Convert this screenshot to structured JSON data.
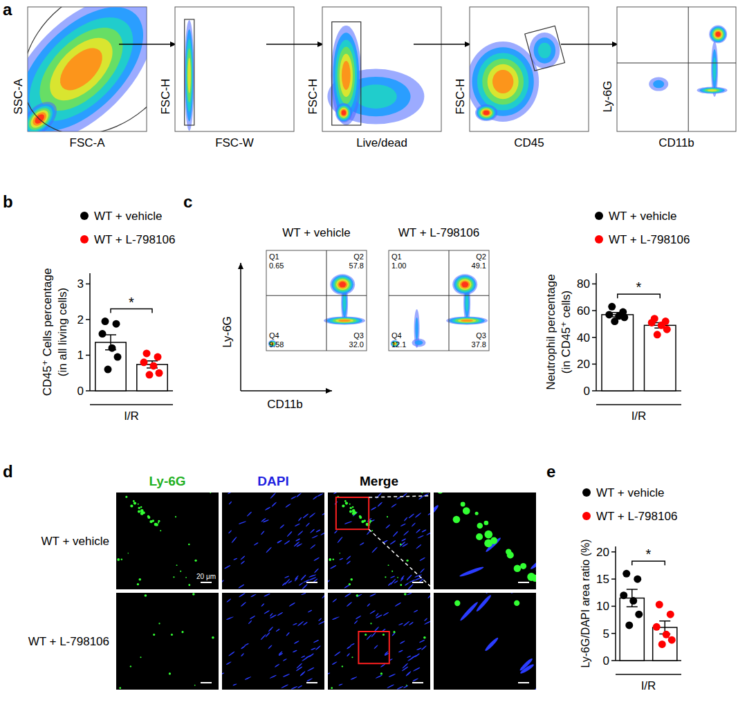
{
  "chart_data": [
    {
      "type": "flow_gating",
      "panel": "a",
      "tick_labels": false,
      "plots": [
        {
          "x_label": "FSC-A",
          "y_label": "SSC-A"
        },
        {
          "x_label": "FSC-W",
          "y_label": "FSC-H"
        },
        {
          "x_label": "Live/dead",
          "y_label": "FSC-H"
        },
        {
          "x_label": "CD45",
          "y_label": "FSC-H"
        },
        {
          "x_label": "CD11b",
          "y_label": "Ly-6G"
        }
      ]
    },
    {
      "type": "bar",
      "panel": "b",
      "categories": [
        "WT + vehicle",
        "WT + L-798106"
      ],
      "colors": [
        "#000000",
        "#ff0000"
      ],
      "values": [
        1.36,
        0.74
      ],
      "errors": [
        0.21,
        0.1
      ],
      "points": [
        [
          1.95,
          1.88,
          1.6,
          1.2,
          0.95,
          0.6
        ],
        [
          1.05,
          0.95,
          0.8,
          0.7,
          0.5,
          0.45
        ]
      ],
      "y_label": [
        "CD45⁺ Cells percentage",
        "(in all living cells)"
      ],
      "x_label": "I/R",
      "ylim": [
        0,
        3.3
      ],
      "yticks": [
        0,
        1,
        2,
        3
      ],
      "significance": "*",
      "legend": "top"
    },
    {
      "type": "flow_quadrant",
      "panel": "c",
      "x_label": "CD11b",
      "y_label": "Ly-6G",
      "tick_labels": false,
      "plots": [
        {
          "title": "WT + vehicle",
          "quadrants": [
            {
              "name": "Q1",
              "value": 0.65,
              "label": "0.65"
            },
            {
              "name": "Q2",
              "value": 57.8,
              "label": "57.8"
            },
            {
              "name": "Q3",
              "value": 32.0,
              "label": "32.0"
            },
            {
              "name": "Q4",
              "value": 9.58,
              "label": "9.58"
            }
          ]
        },
        {
          "title": "WT + L-798106",
          "quadrants": [
            {
              "name": "Q1",
              "value": 1.0,
              "label": "1.00"
            },
            {
              "name": "Q2",
              "value": 49.1,
              "label": "49.1"
            },
            {
              "name": "Q3",
              "value": 37.8,
              "label": "37.8"
            },
            {
              "name": "Q4",
              "value": 12.1,
              "label": "12.1"
            }
          ]
        }
      ]
    },
    {
      "type": "bar",
      "categories": [
        "WT + vehicle",
        "WT + L-798106"
      ],
      "colors": [
        "#000000",
        "#ff0000"
      ],
      "values": [
        57,
        49
      ],
      "errors": [
        1.6,
        2.0
      ],
      "points": [
        [
          63,
          59,
          57,
          56,
          55,
          52
        ],
        [
          54,
          52,
          51,
          49,
          46,
          42
        ]
      ],
      "y_label": [
        "Neutrophil percentage",
        "(in CD45⁺ cells)"
      ],
      "x_label": "I/R",
      "ylim": [
        0,
        88
      ],
      "yticks": [
        0,
        20,
        40,
        60,
        80
      ],
      "significance": "*",
      "legend": "top"
    },
    {
      "type": "image_grid",
      "panel": "d",
      "columns": [
        {
          "label": "Ly-6G",
          "color": "#22b022"
        },
        {
          "label": "DAPI",
          "color": "#1f1fe0"
        },
        {
          "label": "Merge",
          "color": "#000000"
        }
      ],
      "rows": [
        "WT + vehicle",
        "WT + L-798106"
      ],
      "scale_bar": "20 μm"
    },
    {
      "type": "bar",
      "panel": "e",
      "categories": [
        "WT + vehicle",
        "WT + L-798106"
      ],
      "colors": [
        "#000000",
        "#ff0000"
      ],
      "values": [
        11.5,
        6.1
      ],
      "errors": [
        1.6,
        1.2
      ],
      "points": [
        [
          16,
          15,
          12,
          11,
          8.5,
          6.5
        ],
        [
          10.3,
          8.5,
          6.2,
          4.8,
          3.8,
          3.0
        ]
      ],
      "y_label": [
        "Ly-6G/DAPI area ratio (%)"
      ],
      "x_label": "I/R",
      "ylim": [
        0,
        21
      ],
      "yticks": [
        0,
        5,
        10,
        15,
        20
      ],
      "significance": "*",
      "legend": "top"
    }
  ]
}
